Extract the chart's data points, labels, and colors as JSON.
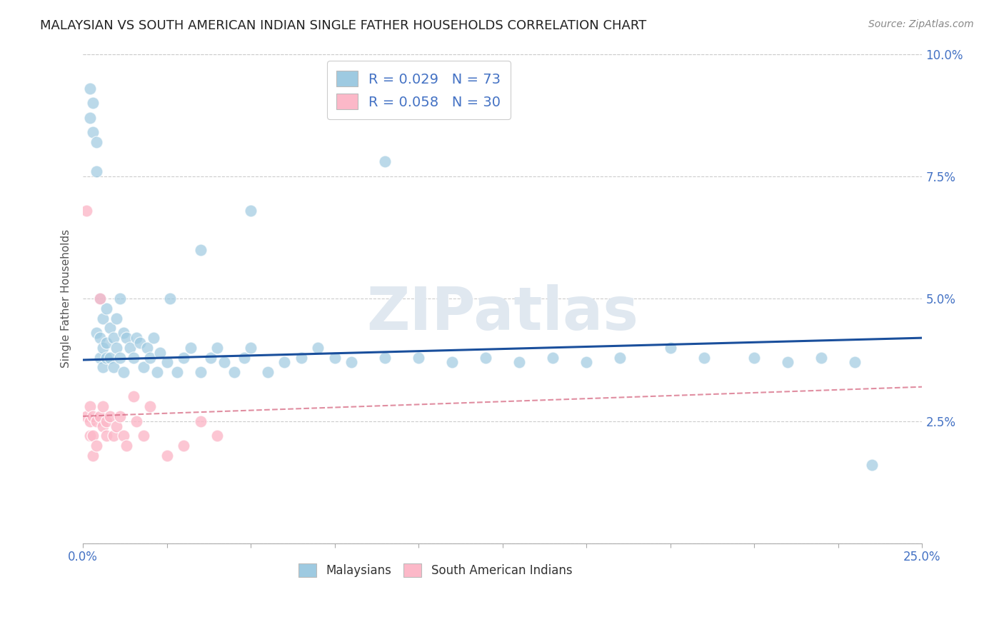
{
  "title": "MALAYSIAN VS SOUTH AMERICAN INDIAN SINGLE FATHER HOUSEHOLDS CORRELATION CHART",
  "source": "Source: ZipAtlas.com",
  "ylabel": "Single Father Households",
  "watermark": "ZIPatlas",
  "legend1_label": "R = 0.029   N = 73",
  "legend2_label": "R = 0.058   N = 30",
  "legend_bottom_label1": "Malaysians",
  "legend_bottom_label2": "South American Indians",
  "blue_color": "#9ecae1",
  "pink_color": "#fcb8c8",
  "line_blue_color": "#1a4f9c",
  "line_pink_color": "#d45f7a",
  "axis_color": "#4472c4",
  "grid_color": "#cccccc",
  "xlim": [
    0.0,
    0.25
  ],
  "ylim": [
    0.0,
    0.1
  ],
  "blue_line_y0": 0.0375,
  "blue_line_y1": 0.042,
  "pink_line_y0": 0.026,
  "pink_line_y1": 0.032,
  "malaysian_x": [
    0.002,
    0.002,
    0.003,
    0.003,
    0.004,
    0.004,
    0.004,
    0.005,
    0.005,
    0.005,
    0.006,
    0.006,
    0.006,
    0.007,
    0.007,
    0.007,
    0.008,
    0.008,
    0.009,
    0.009,
    0.01,
    0.01,
    0.011,
    0.011,
    0.012,
    0.012,
    0.013,
    0.014,
    0.015,
    0.016,
    0.017,
    0.018,
    0.019,
    0.02,
    0.021,
    0.022,
    0.023,
    0.025,
    0.026,
    0.028,
    0.03,
    0.032,
    0.035,
    0.038,
    0.04,
    0.042,
    0.045,
    0.048,
    0.05,
    0.055,
    0.06,
    0.065,
    0.07,
    0.075,
    0.08,
    0.09,
    0.1,
    0.11,
    0.12,
    0.13,
    0.14,
    0.15,
    0.16,
    0.175,
    0.185,
    0.2,
    0.21,
    0.22,
    0.23,
    0.235,
    0.09,
    0.05,
    0.035
  ],
  "malaysian_y": [
    0.093,
    0.087,
    0.09,
    0.084,
    0.082,
    0.076,
    0.043,
    0.038,
    0.042,
    0.05,
    0.036,
    0.04,
    0.046,
    0.038,
    0.041,
    0.048,
    0.038,
    0.044,
    0.036,
    0.042,
    0.04,
    0.046,
    0.038,
    0.05,
    0.035,
    0.043,
    0.042,
    0.04,
    0.038,
    0.042,
    0.041,
    0.036,
    0.04,
    0.038,
    0.042,
    0.035,
    0.039,
    0.037,
    0.05,
    0.035,
    0.038,
    0.04,
    0.035,
    0.038,
    0.04,
    0.037,
    0.035,
    0.038,
    0.04,
    0.035,
    0.037,
    0.038,
    0.04,
    0.038,
    0.037,
    0.038,
    0.038,
    0.037,
    0.038,
    0.037,
    0.038,
    0.037,
    0.038,
    0.04,
    0.038,
    0.038,
    0.037,
    0.038,
    0.037,
    0.016,
    0.078,
    0.068,
    0.06
  ],
  "sa_indian_x": [
    0.001,
    0.001,
    0.002,
    0.002,
    0.002,
    0.003,
    0.003,
    0.003,
    0.004,
    0.004,
    0.005,
    0.005,
    0.006,
    0.006,
    0.007,
    0.007,
    0.008,
    0.009,
    0.01,
    0.011,
    0.012,
    0.013,
    0.015,
    0.016,
    0.018,
    0.02,
    0.025,
    0.03,
    0.035,
    0.04
  ],
  "sa_indian_y": [
    0.068,
    0.026,
    0.025,
    0.028,
    0.022,
    0.026,
    0.022,
    0.018,
    0.025,
    0.02,
    0.026,
    0.05,
    0.024,
    0.028,
    0.022,
    0.025,
    0.026,
    0.022,
    0.024,
    0.026,
    0.022,
    0.02,
    0.03,
    0.025,
    0.022,
    0.028,
    0.018,
    0.02,
    0.025,
    0.022
  ]
}
